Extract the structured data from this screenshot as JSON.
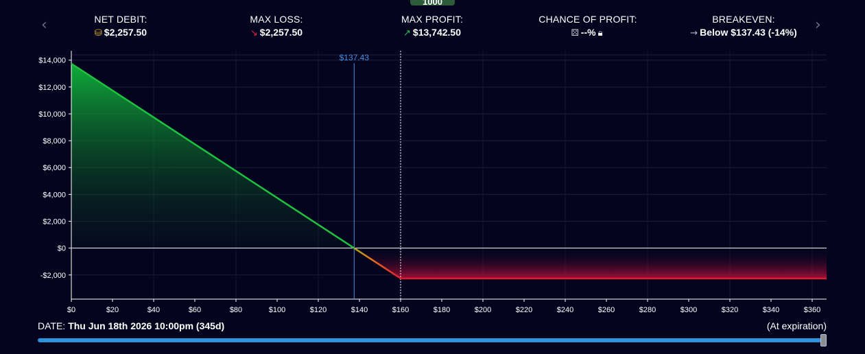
{
  "top_badge": "1000",
  "nav": {
    "prev": "‹",
    "next": "›"
  },
  "stats": {
    "net_debit": {
      "label": "NET DEBIT:",
      "value": "$2,257.50",
      "icon": "coins-icon"
    },
    "max_loss": {
      "label": "MAX LOSS:",
      "value": "$2,257.50",
      "icon": "arrow-down-right-icon"
    },
    "max_profit": {
      "label": "MAX PROFIT:",
      "value": "$13,742.50",
      "icon": "arrow-up-right-icon"
    },
    "chance_of_profit": {
      "label": "CHANCE OF PROFIT:",
      "value": "--%",
      "icon": "dice-icon",
      "lock_icon": "lock-icon"
    },
    "breakeven": {
      "label": "BREAKEVEN:",
      "value": "Below $137.43 (-14%)",
      "icon": "arrow-right-icon"
    }
  },
  "colors": {
    "background": "#04041f",
    "profit": "#1fc23f",
    "loss": "#e0182f",
    "breakeven_line": "#4a8fe0",
    "slider": "#2d92da"
  },
  "chart_data": {
    "type": "area",
    "x": [
      0,
      137.43,
      160,
      367
    ],
    "y": [
      13742.5,
      0,
      -2257.5,
      -2257.5
    ],
    "xlim": [
      0,
      367
    ],
    "ylim": [
      -3800,
      14700
    ],
    "x_ticks": [
      0,
      20,
      40,
      60,
      80,
      100,
      120,
      140,
      160,
      180,
      200,
      220,
      240,
      260,
      280,
      300,
      320,
      340,
      360
    ],
    "x_tick_labels": [
      "$0",
      "$20",
      "$40",
      "$60",
      "$80",
      "$100",
      "$120",
      "$140",
      "$160",
      "$180",
      "$200",
      "$220",
      "$240",
      "$260",
      "$280",
      "$300",
      "$320",
      "$340",
      "$360"
    ],
    "y_ticks": [
      14000,
      12000,
      10000,
      8000,
      6000,
      4000,
      2000,
      0,
      -2000
    ],
    "y_tick_labels": [
      "$14,000",
      "$12,000",
      "$10,000",
      "$8,000",
      "$6,000",
      "$4,000",
      "$2,000",
      "$0",
      "-$2,000"
    ],
    "breakeven_x": 137.43,
    "breakeven_label": "$137.43",
    "current_price_x": 160,
    "grid": true
  },
  "date": {
    "label": "DATE:",
    "value": "Thu Jun 18th 2026 10:00pm (345d)",
    "right": "(At expiration)",
    "slider_position": 1.0
  }
}
